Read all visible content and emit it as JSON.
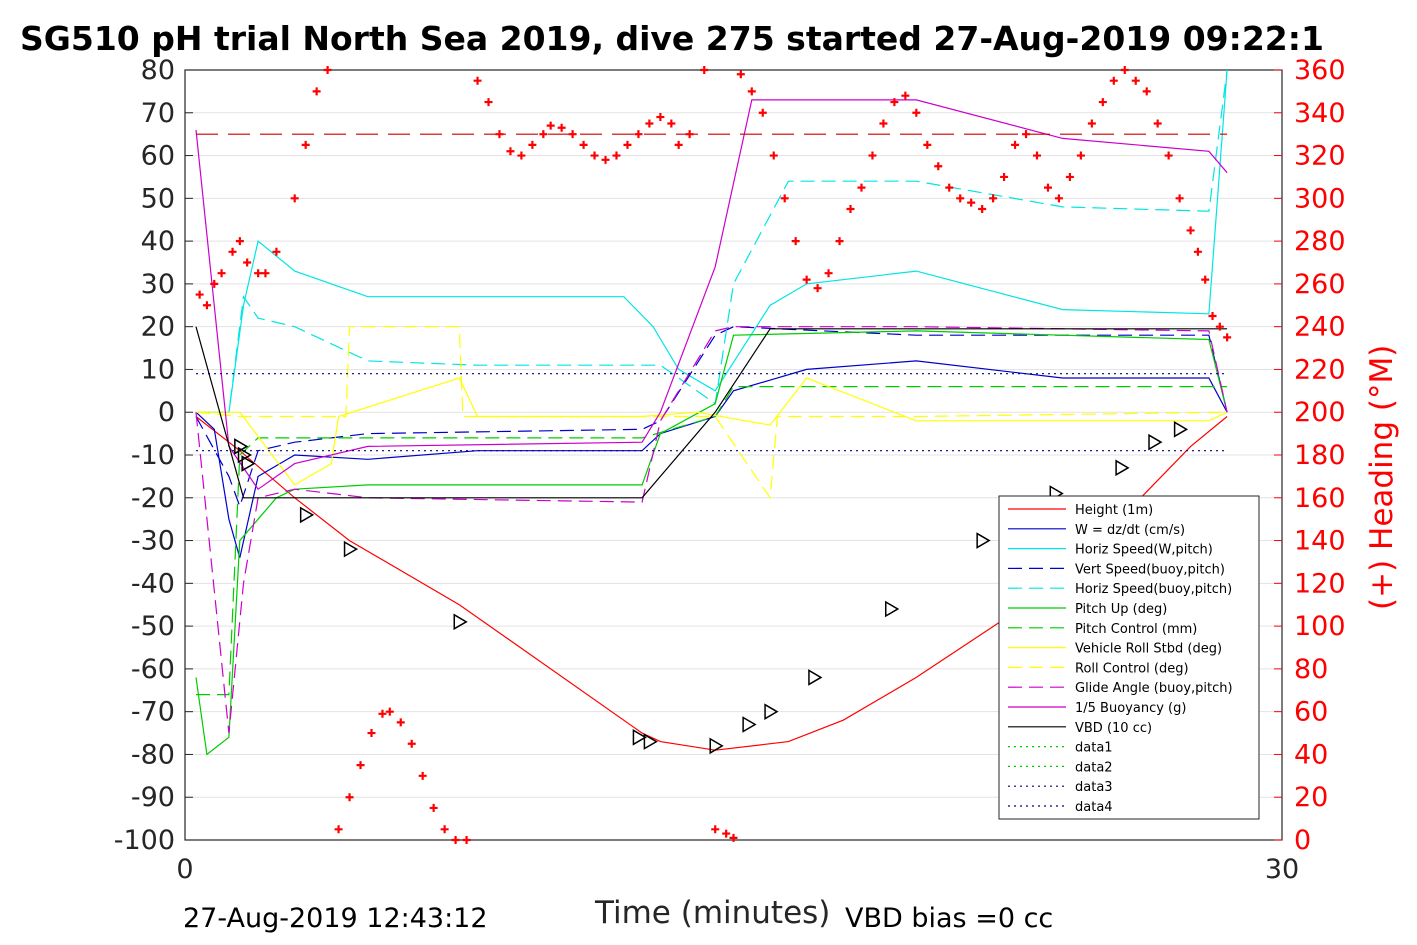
{
  "chart_data": {
    "type": "line",
    "title": "SG510 pH trial North Sea 2019, dive 275 started 27-Aug-2019 09:22:1",
    "xlabel": "Time (minutes)",
    "ylabel_right": "(+) Heading (°M)",
    "xlim": [
      0,
      30
    ],
    "ylim": [
      -100,
      80
    ],
    "ylim_right": [
      0,
      360
    ],
    "x_ticks": [
      "0",
      "30"
    ],
    "y_ticks": [
      "80",
      "70",
      "60",
      "50",
      "40",
      "30",
      "20",
      "10",
      "0",
      "-10",
      "-20",
      "-30",
      "-40",
      "-50",
      "-60",
      "-70",
      "-80",
      "-90",
      "-100"
    ],
    "y_ticks_right": [
      "360",
      "340",
      "320",
      "300",
      "280",
      "260",
      "240",
      "220",
      "200",
      "180",
      "160",
      "140",
      "120",
      "100",
      "80",
      "60",
      "40",
      "20",
      "0"
    ],
    "grid": true,
    "legend_placement": "lower-right",
    "footer_left": "27-Aug-2019 12:43:12",
    "footer_right": "VBD bias =0 cc",
    "series": [
      {
        "name": "Height (1m)",
        "color": "#ff0000",
        "style": "solid",
        "x": [
          0.3,
          1.5,
          3,
          4.5,
          7.5,
          12.5,
          13,
          14.5,
          16.5,
          18,
          20,
          23,
          25,
          27.5,
          28.5
        ],
        "y": [
          -1,
          -9,
          -20,
          -30,
          -45,
          -75,
          -77,
          -79,
          -77,
          -72,
          -62,
          -45,
          -30,
          -8,
          -1
        ]
      },
      {
        "name": "W = dz/dt (cm/s)",
        "color": "#0000cc",
        "style": "solid",
        "x": [
          0.3,
          0.8,
          1.2,
          1.5,
          2,
          3,
          5,
          8,
          12.5,
          13,
          14.5,
          15,
          17,
          20,
          24,
          28,
          28.5
        ],
        "y": [
          0,
          -4,
          -25,
          -34,
          -15,
          -10,
          -11,
          -9,
          -9,
          -5,
          -1,
          5,
          10,
          12,
          8,
          8,
          0
        ]
      },
      {
        "name": "Horiz Speed(W,pitch)",
        "color": "#00e5e5",
        "style": "solid",
        "x": [
          0.3,
          1.2,
          1.6,
          2,
          3,
          5,
          8,
          12,
          12.8,
          13.5,
          14.5,
          16,
          17,
          20,
          24,
          28,
          28.5
        ],
        "y": [
          0,
          0,
          25,
          40,
          33,
          27,
          27,
          27,
          20,
          10,
          5,
          25,
          30,
          33,
          24,
          23,
          80
        ]
      },
      {
        "name": "Vert Speed(buoy,pitch)",
        "color": "#0000cc",
        "style": "dashed",
        "x": [
          0.3,
          1.2,
          1.5,
          2,
          3,
          5,
          12.5,
          13,
          14.5,
          15,
          20,
          28,
          28.5
        ],
        "y": [
          -1,
          -15,
          -22,
          -9,
          -7,
          -5,
          -4,
          -2,
          18,
          20,
          18,
          18,
          0
        ]
      },
      {
        "name": "Horiz Speed(buoy,pitch)",
        "color": "#00e5e5",
        "style": "dashed",
        "x": [
          0.3,
          1.2,
          1.6,
          2,
          3,
          5,
          8,
          12.5,
          13,
          14.5,
          15,
          16.5,
          20,
          24,
          28,
          28.5
        ],
        "y": [
          0,
          0,
          27,
          22,
          20,
          12,
          11,
          11,
          11,
          2,
          30,
          54,
          54,
          48,
          47,
          80
        ]
      },
      {
        "name": "Pitch Up (deg)",
        "color": "#00cc00",
        "style": "solid",
        "x": [
          0.3,
          0.6,
          1.2,
          1.5,
          2,
          2.5,
          3,
          5,
          12.5,
          13,
          14.5,
          15,
          20,
          28,
          28.5
        ],
        "y": [
          -62,
          -80,
          -76,
          -30,
          -25,
          -20,
          -18,
          -17,
          -17,
          -5,
          2,
          18,
          19,
          17,
          0
        ]
      },
      {
        "name": "Pitch Control (mm)",
        "color": "#00cc00",
        "style": "dashed",
        "x": [
          0.3,
          1.2,
          1.5,
          2,
          12.5,
          14.5,
          15,
          28.5
        ],
        "y": [
          -66,
          -66,
          -10,
          -6,
          -6,
          -1,
          6,
          6
        ]
      },
      {
        "name": "Vehicle Roll Stbd (deg)",
        "color": "#ffff00",
        "style": "solid",
        "x": [
          0.3,
          1.5,
          3,
          4,
          4.2,
          7.5,
          8,
          12.5,
          14,
          16,
          17,
          20,
          28,
          28.5
        ],
        "y": [
          0,
          0,
          -17,
          -12,
          -1,
          8,
          -1,
          -1,
          0,
          -3,
          8,
          -2,
          -2,
          0
        ]
      },
      {
        "name": "Roll Control (deg)",
        "color": "#ffff00",
        "style": "dashed",
        "x": [
          0.3,
          1.5,
          4.4,
          4.5,
          7.5,
          7.6,
          14.5,
          16,
          16.2,
          20,
          28.5
        ],
        "y": [
          0,
          -1,
          -1,
          20,
          20,
          -1,
          -1,
          -20,
          -1,
          -1,
          0
        ]
      },
      {
        "name": "Glide Angle (buoy,pitch)",
        "color": "#cc00cc",
        "style": "dashed",
        "x": [
          0.3,
          1.2,
          1.6,
          2,
          3,
          5,
          12.5,
          13,
          14.5,
          15,
          20,
          28,
          28.5
        ],
        "y": [
          0,
          -75,
          -40,
          -20,
          -18,
          -20,
          -21,
          -2,
          19,
          20,
          20,
          19,
          0
        ]
      },
      {
        "name": "1/5 Buoyancy (g)",
        "color": "#cc00cc",
        "style": "solid",
        "x": [
          0.3,
          1.2,
          2,
          3,
          5,
          12.5,
          13,
          14.5,
          15.5,
          20,
          24,
          28,
          28.5
        ],
        "y": [
          66,
          -8,
          -18,
          -12,
          -8,
          -7,
          0,
          34,
          73,
          73,
          64,
          61,
          56
        ]
      },
      {
        "name": "VBD (10 cc)",
        "color": "#000000",
        "style": "solid",
        "x": [
          0.3,
          1.6,
          12.5,
          14.5,
          16,
          28.5
        ],
        "y": [
          20,
          -20,
          -20,
          0,
          19.5,
          19.5
        ]
      },
      {
        "name": "data1",
        "color": "#00cc00",
        "style": "dotted",
        "x": [],
        "y": []
      },
      {
        "name": "data2",
        "color": "#00cc00",
        "style": "dotted",
        "x": [],
        "y": []
      },
      {
        "name": "data3",
        "color": "#000080",
        "style": "dotted",
        "x": [
          0.3,
          28.5
        ],
        "y": [
          9,
          9
        ]
      },
      {
        "name": "data4",
        "color": "#000080",
        "style": "dotted",
        "x": [
          0.3,
          28.5
        ],
        "y": [
          -9,
          -9
        ]
      },
      {
        "name": "",
        "color": "#cc0000",
        "style": "longdash",
        "x": [
          0.3,
          28.5
        ],
        "y": [
          65,
          65
        ]
      }
    ],
    "heading": {
      "color": "#ff0000",
      "marker": "+",
      "x": [
        0.4,
        0.6,
        0.8,
        1,
        1.3,
        1.5,
        1.7,
        2,
        2.2,
        2.5,
        3,
        3.3,
        3.6,
        3.9,
        4.2,
        4.5,
        4.8,
        5.1,
        5.4,
        5.6,
        5.9,
        6.2,
        6.5,
        6.8,
        7.1,
        7.4,
        7.7,
        8,
        8.3,
        8.6,
        8.9,
        9.2,
        9.5,
        9.8,
        10,
        10.3,
        10.6,
        10.9,
        11.2,
        11.5,
        11.8,
        12.1,
        12.4,
        12.7,
        13,
        13.3,
        13.5,
        13.8,
        14.2,
        14.5,
        14.8,
        15,
        15.2,
        15.5,
        15.8,
        16.1,
        16.4,
        16.7,
        17,
        17.3,
        17.6,
        17.9,
        18.2,
        18.5,
        18.8,
        19.1,
        19.4,
        19.7,
        20,
        20.3,
        20.6,
        20.9,
        21.2,
        21.5,
        21.8,
        22.1,
        22.4,
        22.7,
        23,
        23.3,
        23.6,
        23.9,
        24.2,
        24.5,
        24.8,
        25.1,
        25.4,
        25.7,
        26,
        26.3,
        26.6,
        26.9,
        27.2,
        27.5,
        27.7,
        27.9,
        28.1,
        28.3,
        28.5
      ],
      "y": [
        255,
        250,
        260,
        265,
        275,
        280,
        270,
        265,
        265,
        275,
        300,
        325,
        350,
        360,
        5,
        20,
        35,
        50,
        59,
        60,
        55,
        45,
        30,
        15,
        5,
        0,
        0,
        355,
        345,
        330,
        322,
        320,
        325,
        330,
        334,
        333,
        330,
        325,
        320,
        318,
        320,
        325,
        330,
        335,
        338,
        335,
        325,
        330,
        360,
        5,
        3,
        1,
        358,
        350,
        340,
        320,
        300,
        280,
        262,
        258,
        265,
        280,
        295,
        305,
        320,
        335,
        345,
        348,
        340,
        325,
        315,
        305,
        300,
        298,
        295,
        300,
        310,
        325,
        330,
        320,
        305,
        300,
        310,
        320,
        335,
        345,
        355,
        360,
        355,
        350,
        335,
        320,
        300,
        285,
        275,
        262,
        245,
        240,
        235
      ]
    },
    "markers": {
      "color": "#000000",
      "x": [
        1.5,
        1.6,
        1.7,
        3.3,
        4.5,
        7.5,
        12.4,
        12.7,
        14.5,
        15.4,
        16,
        17.2,
        19.3,
        21.8,
        23.8,
        25.6,
        26.5,
        27.2
      ],
      "y": [
        -8,
        -10,
        -12,
        -24,
        -32,
        -49,
        -76,
        -77,
        -78,
        -73,
        -70,
        -62,
        -46,
        -30,
        -19,
        -13,
        -7,
        -4
      ]
    }
  }
}
